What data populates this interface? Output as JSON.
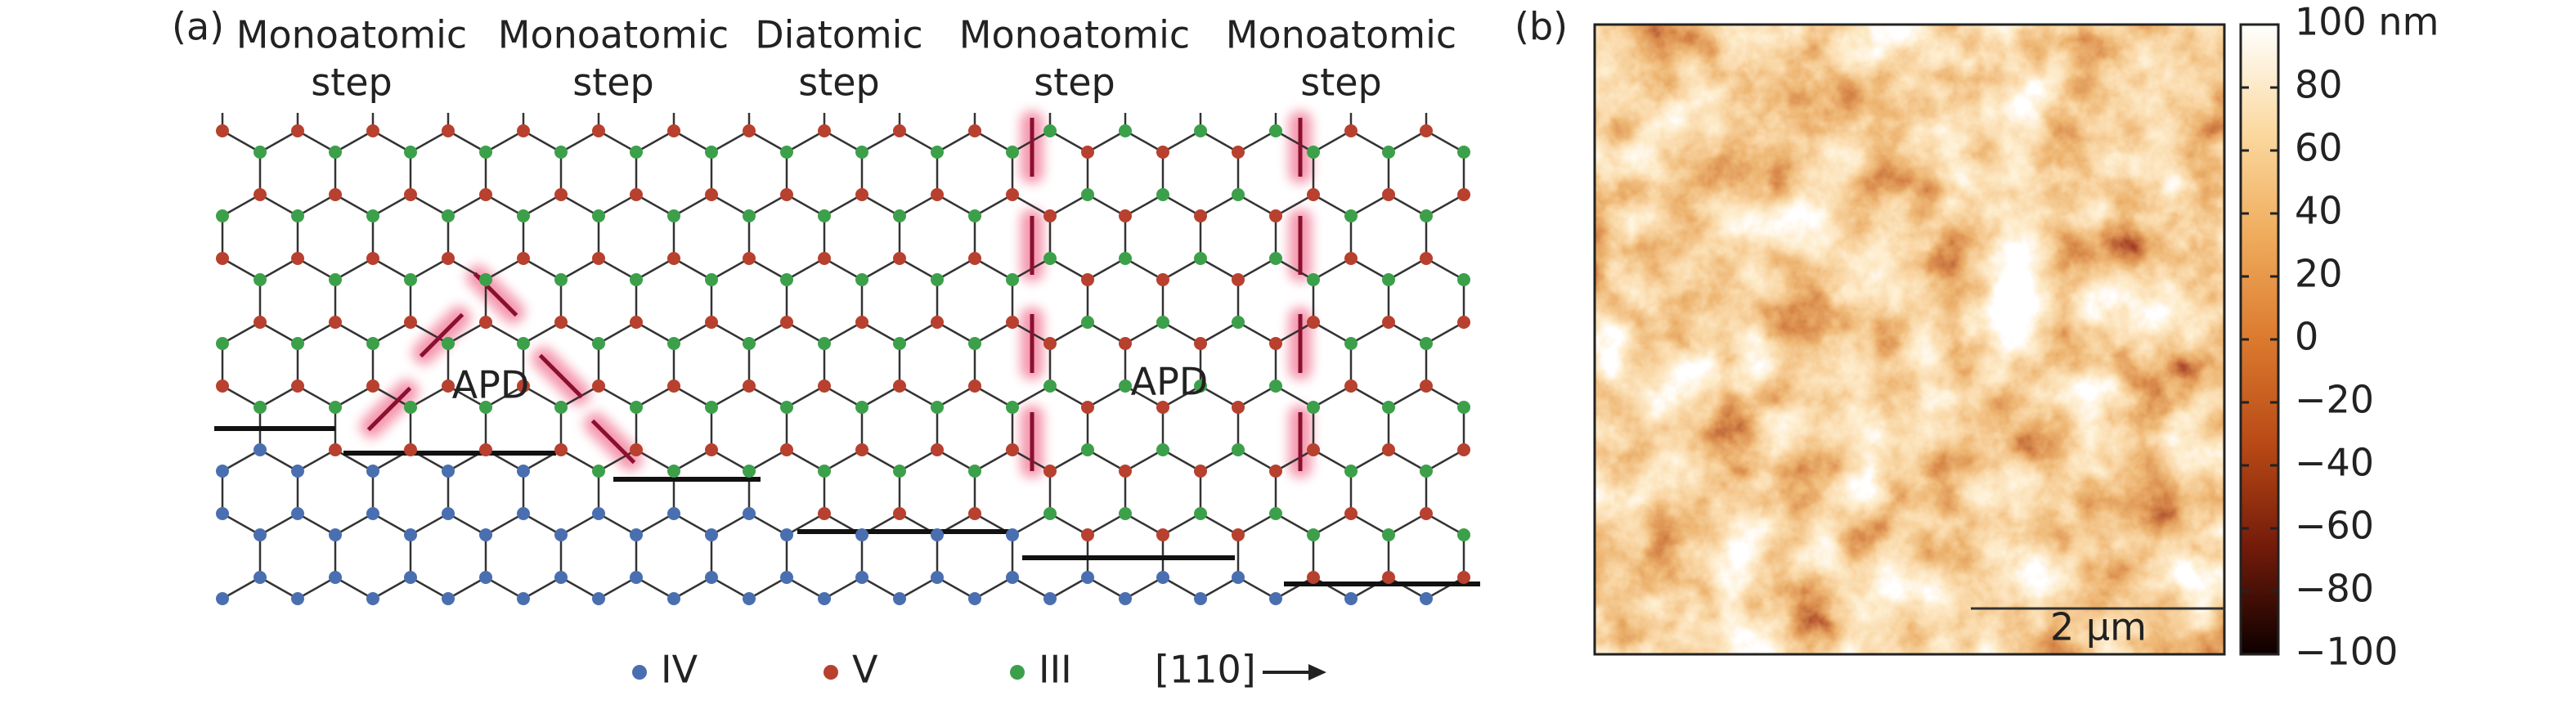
{
  "panel_a": {
    "label": "(a)",
    "steps": [
      [
        "Monoatomic",
        "step"
      ],
      [
        "Monoatomic",
        "step"
      ],
      [
        "Diatomic",
        "step"
      ],
      [
        "Monoatomic",
        "step"
      ],
      [
        "Monoatomic",
        "step"
      ]
    ],
    "apd": [
      "APD",
      "APD"
    ],
    "legend": [
      "IV",
      "V",
      "III"
    ],
    "direction": "[110]"
  },
  "panel_b": {
    "label": "(b)",
    "scale_bar": "2 µm",
    "colorbar": {
      "lim": [
        -100,
        100
      ],
      "ticks": [
        {
          "value": 100,
          "label": "100 nm"
        },
        80,
        60,
        40,
        20,
        0,
        {
          "value": -20,
          "label": "−20"
        },
        {
          "value": -40,
          "label": "−40"
        },
        {
          "value": -60,
          "label": "−60"
        },
        {
          "value": -80,
          "label": "−80"
        },
        {
          "value": -100,
          "label": "−100"
        }
      ]
    }
  }
}
